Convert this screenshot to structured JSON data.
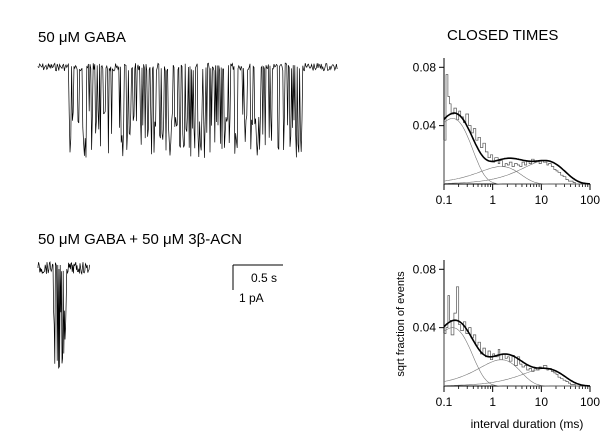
{
  "panels": {
    "top_trace_label_parts": {
      "prefix": "50 ",
      "mu": "μ",
      "suffix": "M GABA"
    },
    "bottom_trace_label_parts": {
      "p1": "50 ",
      "mu1": "μ",
      "p2": "M GABA + 50 ",
      "mu2": "μ",
      "p3": "M 3",
      "beta": "β",
      "p4": "-ACN"
    },
    "histogram_column_title": "CLOSED TIMES"
  },
  "scale_bar": {
    "time_label": "0.5 s",
    "current_label": "1 pA"
  },
  "chart_data": [
    {
      "type": "histogram",
      "panel": "top",
      "xscale": "log",
      "xlim": [
        0.1,
        100
      ],
      "ylim": [
        0,
        0.085
      ],
      "x_ticks": [
        "0.1",
        "1",
        "10",
        "100"
      ],
      "y_ticks": [
        "0.04",
        "0.08"
      ],
      "xlabel": "",
      "ylabel": "",
      "histogram": {
        "x": [
          0.1,
          0.11,
          0.12,
          0.13,
          0.14,
          0.16,
          0.18,
          0.2,
          0.22,
          0.25,
          0.28,
          0.32,
          0.36,
          0.4,
          0.45,
          0.5,
          0.56,
          0.63,
          0.71,
          0.8,
          0.9,
          1.0,
          1.1,
          1.3,
          1.4,
          1.6,
          1.8,
          2.0,
          2.2,
          2.5,
          2.8,
          3.2,
          3.6,
          4.0,
          4.5,
          5.0,
          5.6,
          6.3,
          7.1,
          8.0,
          9.0,
          10,
          11,
          13,
          14,
          16,
          18,
          20,
          22,
          25,
          28,
          32,
          36,
          40,
          45,
          50
        ],
        "y": [
          0.03,
          0.075,
          0.06,
          0.055,
          0.048,
          0.052,
          0.044,
          0.05,
          0.046,
          0.042,
          0.048,
          0.04,
          0.035,
          0.038,
          0.03,
          0.032,
          0.025,
          0.028,
          0.022,
          0.018,
          0.02,
          0.015,
          0.018,
          0.014,
          0.016,
          0.012,
          0.014,
          0.013,
          0.015,
          0.012,
          0.014,
          0.013,
          0.012,
          0.015,
          0.013,
          0.016,
          0.014,
          0.017,
          0.015,
          0.016,
          0.014,
          0.016,
          0.015,
          0.013,
          0.014,
          0.012,
          0.01,
          0.009,
          0.008,
          0.006,
          0.005,
          0.003,
          0.002,
          0.002,
          0.001,
          0.0
        ]
      },
      "components": [
        {
          "tau": 0.15,
          "amp": 0.045
        },
        {
          "tau": 1.5,
          "amp": 0.012
        },
        {
          "tau": 12,
          "amp": 0.016
        }
      ]
    },
    {
      "type": "histogram",
      "panel": "bottom",
      "xscale": "log",
      "xlim": [
        0.1,
        100
      ],
      "ylim": [
        0,
        0.085
      ],
      "x_ticks": [
        "0.1",
        "1",
        "10",
        "100"
      ],
      "y_ticks": [
        "0.04",
        "0.08"
      ],
      "xlabel": "interval duration (ms)",
      "ylabel": "sqrt fraction of events",
      "histogram": {
        "x": [
          0.1,
          0.11,
          0.12,
          0.13,
          0.14,
          0.16,
          0.18,
          0.2,
          0.22,
          0.25,
          0.28,
          0.32,
          0.36,
          0.4,
          0.45,
          0.5,
          0.56,
          0.63,
          0.71,
          0.8,
          0.9,
          1.0,
          1.1,
          1.3,
          1.4,
          1.6,
          1.8,
          2.0,
          2.2,
          2.5,
          2.8,
          3.2,
          3.6,
          4.0,
          4.5,
          5.0,
          5.6,
          6.3,
          7.1,
          8.0,
          9.0,
          10,
          11,
          13,
          14,
          16,
          18,
          20,
          22,
          25,
          28,
          32,
          36,
          40,
          45,
          50
        ],
        "y": [
          0.036,
          0.04,
          0.062,
          0.045,
          0.035,
          0.05,
          0.068,
          0.042,
          0.038,
          0.044,
          0.036,
          0.04,
          0.033,
          0.035,
          0.028,
          0.03,
          0.022,
          0.026,
          0.02,
          0.024,
          0.018,
          0.022,
          0.02,
          0.025,
          0.018,
          0.022,
          0.019,
          0.02,
          0.017,
          0.021,
          0.014,
          0.02,
          0.015,
          0.013,
          0.014,
          0.011,
          0.012,
          0.01,
          0.012,
          0.011,
          0.013,
          0.012,
          0.014,
          0.011,
          0.012,
          0.01,
          0.009,
          0.008,
          0.006,
          0.005,
          0.004,
          0.003,
          0.002,
          0.001,
          0.001,
          0.0
        ]
      },
      "components": [
        {
          "tau": 0.15,
          "amp": 0.04
        },
        {
          "tau": 1.5,
          "amp": 0.018
        },
        {
          "tau": 12,
          "amp": 0.012
        }
      ]
    }
  ]
}
